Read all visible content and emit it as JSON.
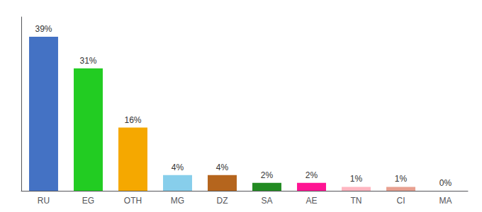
{
  "chart_data": {
    "type": "bar",
    "categories": [
      "RU",
      "EG",
      "OTH",
      "MG",
      "DZ",
      "SA",
      "AE",
      "TN",
      "CI",
      "MA"
    ],
    "values": [
      39,
      31,
      16,
      4,
      4,
      2,
      2,
      1,
      1,
      0
    ],
    "value_labels": [
      "39%",
      "31%",
      "16%",
      "4%",
      "4%",
      "2%",
      "2%",
      "1%",
      "1%",
      "0%"
    ],
    "colors": [
      "#4472c4",
      "#22cc22",
      "#f5a800",
      "#87ceeb",
      "#b5651d",
      "#228B22",
      "#ff1493",
      "#ffb6c1",
      "#e8a090",
      "#cccccc"
    ],
    "ylim": [
      0,
      44
    ],
    "data_labels": true,
    "tick_labels": "x",
    "grid": false
  }
}
